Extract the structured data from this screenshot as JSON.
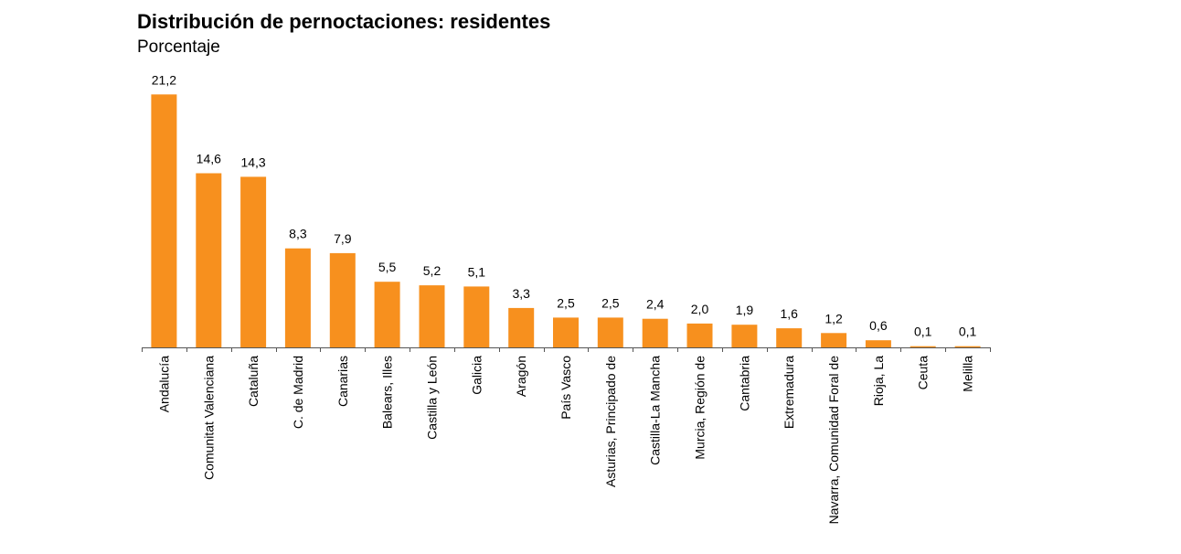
{
  "chart_data": {
    "type": "bar",
    "title": "Distribución de pernoctaciones: residentes",
    "subtitle": "Porcentaje",
    "xlabel": "",
    "ylabel": "",
    "ylim": [
      0,
      23
    ],
    "grid": false,
    "legend": "none",
    "bar_color": "#F7901E",
    "categories": [
      "Andalucía",
      "Comunitat Valenciana",
      "Cataluña",
      "C. de Madrid",
      "Canarias",
      "Balears, Illes",
      "Castilla y León",
      "Galicia",
      "Aragón",
      "País Vasco",
      "Asturias, Principado de",
      "Castilla-La Mancha",
      "Murcia, Región de",
      "Cantabria",
      "Extremadura",
      "Navarra, Comunidad Foral de",
      "Rioja, La",
      "Ceuta",
      "Melilla"
    ],
    "values": [
      21.2,
      14.6,
      14.3,
      8.3,
      7.9,
      5.5,
      5.2,
      5.1,
      3.3,
      2.5,
      2.5,
      2.4,
      2.0,
      1.9,
      1.6,
      1.2,
      0.6,
      0.1,
      0.1
    ],
    "data_labels": [
      "21,2",
      "14,6",
      "14,3",
      "8,3",
      "7,9",
      "5,5",
      "5,2",
      "5,1",
      "3,3",
      "2,5",
      "2,5",
      "2,4",
      "2,0",
      "1,9",
      "1,6",
      "1,2",
      "0,6",
      "0,1",
      "0,1"
    ]
  }
}
